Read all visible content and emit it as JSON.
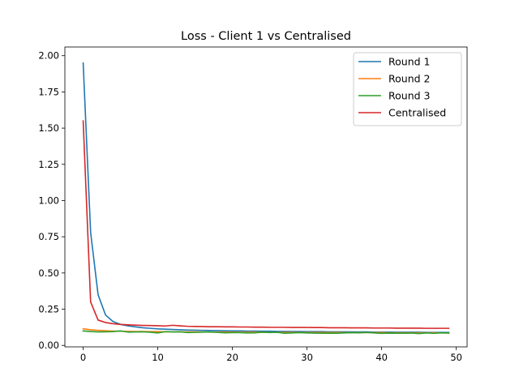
{
  "chart_data": {
    "type": "line",
    "title": "Loss - Client 1 vs Centralised",
    "xlabel": "",
    "ylabel": "",
    "xlim": [
      -2.45,
      51.45
    ],
    "ylim": [
      -0.01,
      2.06
    ],
    "xticks": [
      0,
      10,
      20,
      30,
      40,
      50
    ],
    "xtick_labels": [
      "0",
      "10",
      "20",
      "30",
      "40",
      "50"
    ],
    "yticks": [
      0.0,
      0.25,
      0.5,
      0.75,
      1.0,
      1.25,
      1.5,
      1.75,
      2.0
    ],
    "ytick_labels": [
      "0.00",
      "0.25",
      "0.50",
      "0.75",
      "1.00",
      "1.25",
      "1.50",
      "1.75",
      "2.00"
    ],
    "grid": false,
    "legend_position": "top-right",
    "x": [
      0,
      1,
      2,
      3,
      4,
      5,
      6,
      7,
      8,
      9,
      10,
      11,
      12,
      13,
      14,
      15,
      16,
      17,
      18,
      19,
      20,
      21,
      22,
      23,
      24,
      25,
      26,
      27,
      28,
      29,
      30,
      31,
      32,
      33,
      34,
      35,
      36,
      37,
      38,
      39,
      40,
      41,
      42,
      43,
      44,
      45,
      46,
      47,
      48,
      49
    ],
    "series": [
      {
        "name": "Round 1",
        "color": "#1f77b4",
        "values": [
          1.95,
          0.78,
          0.35,
          0.21,
          0.165,
          0.145,
          0.135,
          0.128,
          0.122,
          0.118,
          0.114,
          0.112,
          0.11,
          0.108,
          0.106,
          0.105,
          0.104,
          0.103,
          0.102,
          0.101,
          0.1,
          0.1,
          0.099,
          0.099,
          0.098,
          0.098,
          0.097,
          0.097,
          0.096,
          0.096,
          0.095,
          0.095,
          0.095,
          0.094,
          0.094,
          0.094,
          0.093,
          0.093,
          0.093,
          0.092,
          0.092,
          0.092,
          0.091,
          0.091,
          0.091,
          0.091,
          0.09,
          0.09,
          0.09,
          0.09
        ]
      },
      {
        "name": "Round 2",
        "color": "#ff7f0e",
        "values": [
          0.115,
          0.108,
          0.104,
          0.101,
          0.099,
          0.098,
          0.097,
          0.096,
          0.096,
          0.095,
          0.095,
          0.094,
          0.094,
          0.094,
          0.093,
          0.093,
          0.093,
          0.092,
          0.092,
          0.092,
          0.092,
          0.091,
          0.091,
          0.091,
          0.091,
          0.09,
          0.09,
          0.09,
          0.09,
          0.09,
          0.089,
          0.089,
          0.089,
          0.089,
          0.089,
          0.088,
          0.088,
          0.088,
          0.088,
          0.088,
          0.088,
          0.087,
          0.087,
          0.087,
          0.087,
          0.087,
          0.087,
          0.087,
          0.086,
          0.086
        ]
      },
      {
        "name": "Round 3",
        "color": "#2ca02c",
        "values": [
          0.1,
          0.096,
          0.093,
          0.094,
          0.095,
          0.1,
          0.092,
          0.093,
          0.094,
          0.091,
          0.086,
          0.095,
          0.093,
          0.094,
          0.089,
          0.09,
          0.092,
          0.093,
          0.09,
          0.087,
          0.088,
          0.088,
          0.086,
          0.087,
          0.091,
          0.089,
          0.09,
          0.084,
          0.086,
          0.088,
          0.086,
          0.085,
          0.084,
          0.085,
          0.084,
          0.086,
          0.088,
          0.087,
          0.09,
          0.086,
          0.083,
          0.085,
          0.084,
          0.084,
          0.085,
          0.082,
          0.086,
          0.083,
          0.087,
          0.085
        ]
      },
      {
        "name": "Centralised",
        "color": "#d62728",
        "values": [
          1.55,
          0.3,
          0.175,
          0.158,
          0.15,
          0.145,
          0.142,
          0.14,
          0.138,
          0.137,
          0.136,
          0.134,
          0.139,
          0.135,
          0.132,
          0.131,
          0.13,
          0.129,
          0.129,
          0.128,
          0.128,
          0.127,
          0.127,
          0.126,
          0.126,
          0.125,
          0.125,
          0.125,
          0.124,
          0.124,
          0.124,
          0.123,
          0.123,
          0.122,
          0.122,
          0.122,
          0.121,
          0.121,
          0.121,
          0.12,
          0.12,
          0.12,
          0.119,
          0.119,
          0.119,
          0.119,
          0.118,
          0.118,
          0.118,
          0.118
        ]
      }
    ]
  }
}
